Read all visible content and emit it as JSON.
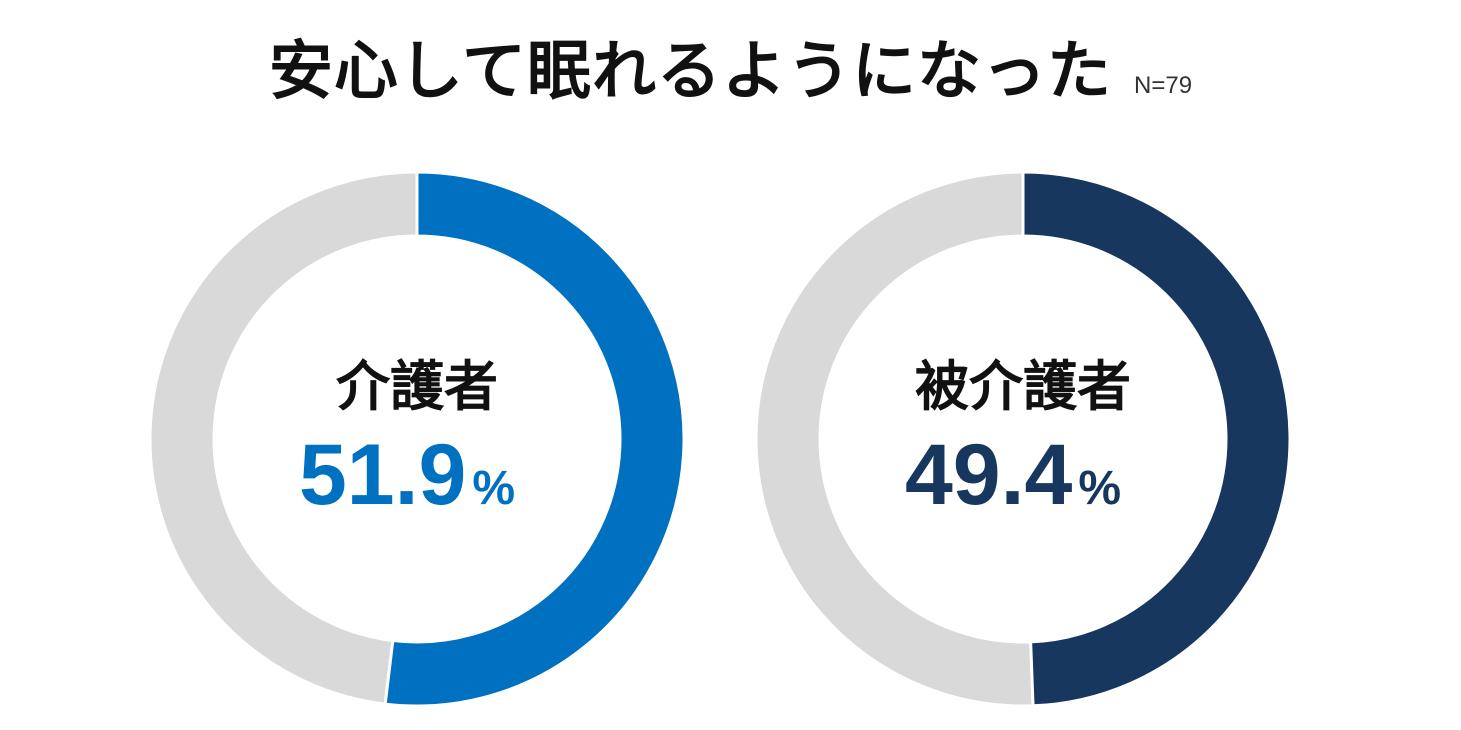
{
  "title": "安心して眠れるようになった",
  "sample_size": "N=79",
  "chart_data": [
    {
      "type": "pie",
      "donut": true,
      "category": "介護者",
      "value": 51.9,
      "value_label": "51.9",
      "unit": "%",
      "color": "#0070C0",
      "remainder_color": "#D9D9D9"
    },
    {
      "type": "pie",
      "donut": true,
      "category": "被介護者",
      "value": 49.4,
      "value_label": "49.4",
      "unit": "%",
      "color": "#17375E",
      "remainder_color": "#D9D9D9"
    }
  ]
}
